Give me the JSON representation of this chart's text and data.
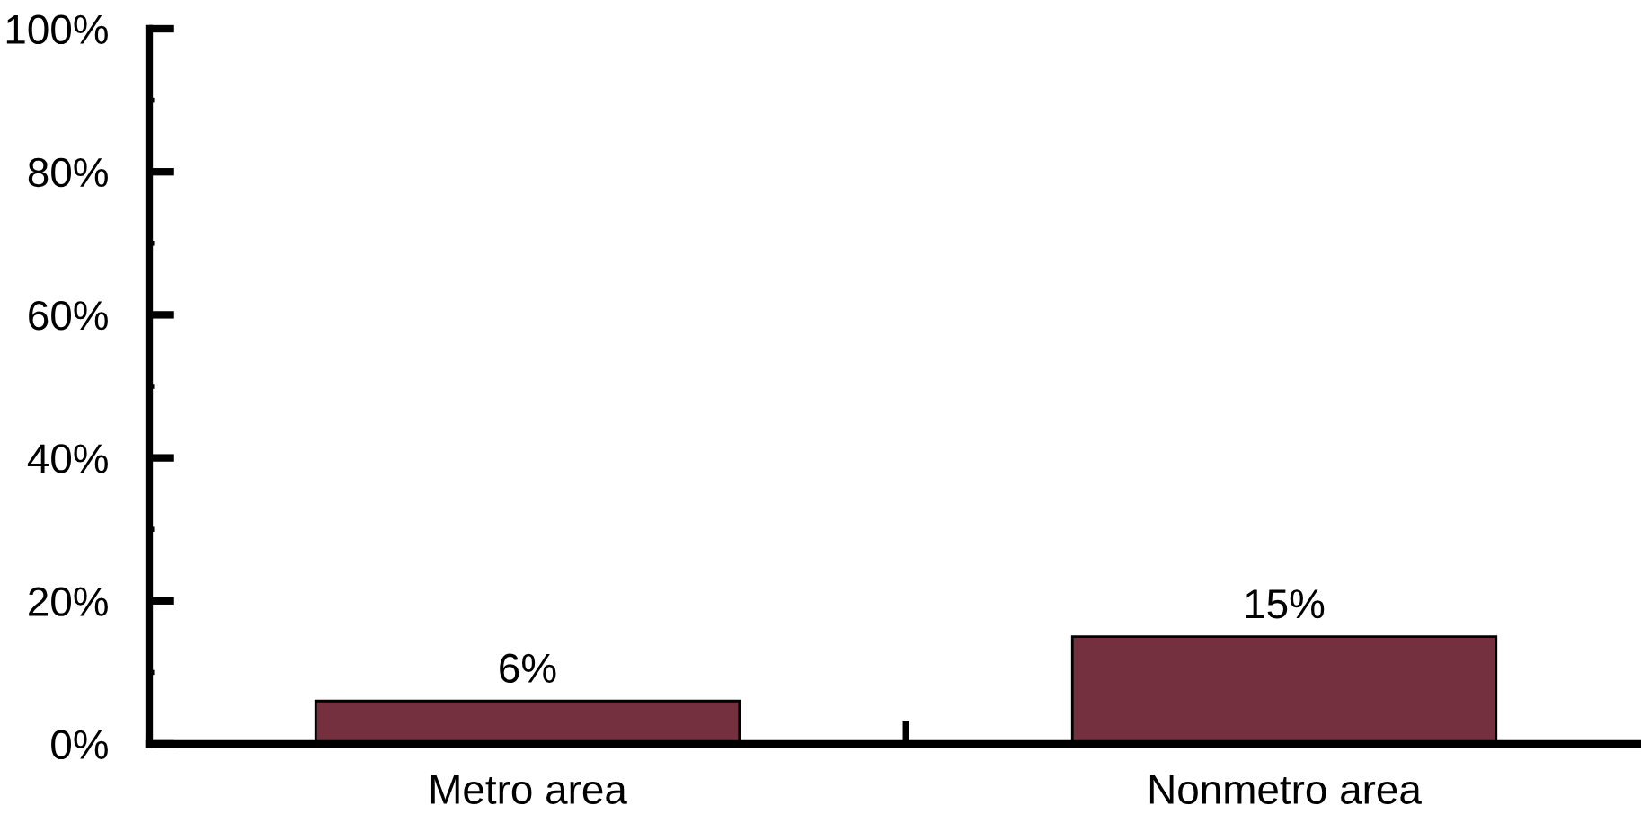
{
  "chart_data": {
    "type": "bar",
    "categories": [
      "Metro area",
      "Nonmetro area"
    ],
    "values": [
      6,
      15
    ],
    "value_labels": [
      "6%",
      "15%"
    ],
    "color": "#75303f",
    "ylim": [
      0,
      100
    ],
    "yticks": [
      {
        "value": 0,
        "label": "0%"
      },
      {
        "value": 10,
        "label": null
      },
      {
        "value": 20,
        "label": "20%"
      },
      {
        "value": 30,
        "label": null
      },
      {
        "value": 40,
        "label": "40%"
      },
      {
        "value": 50,
        "label": null
      },
      {
        "value": 60,
        "label": "60%"
      },
      {
        "value": 70,
        "label": null
      },
      {
        "value": 80,
        "label": "80%"
      },
      {
        "value": 90,
        "label": null
      },
      {
        "value": 100,
        "label": "100%"
      }
    ],
    "grid": false,
    "legend": false
  }
}
